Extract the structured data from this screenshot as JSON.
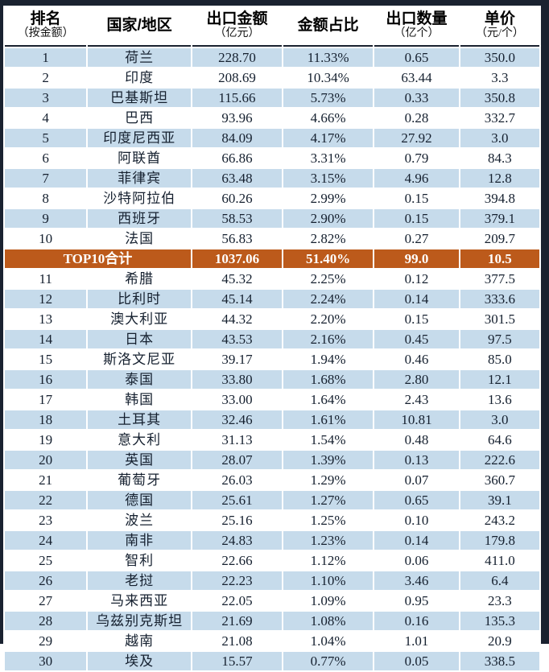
{
  "colors": {
    "row_blue": "#c6dbeb",
    "row_white": "#ffffff",
    "total_row_bg": "#bc5a1b",
    "total_row_text": "#ffffff",
    "outer_border": "#1a2230",
    "body_text": "#15202f",
    "header_text": "#000000"
  },
  "chart_data": {
    "type": "table",
    "headers": [
      {
        "main": "排名",
        "sub": "（按金额）"
      },
      {
        "main": "国家/地区",
        "sub": ""
      },
      {
        "main": "出口金额",
        "sub": "（亿元）"
      },
      {
        "main": "金额占比",
        "sub": ""
      },
      {
        "main": "出口数量",
        "sub": "（亿个）"
      },
      {
        "main": "单价",
        "sub": "（元/个）"
      }
    ],
    "rows": [
      {
        "rank": 1,
        "country": "荷兰",
        "amount": "228.70",
        "share": "11.33%",
        "quantity": "0.65",
        "price": "350.0"
      },
      {
        "rank": 2,
        "country": "印度",
        "amount": "208.69",
        "share": "10.34%",
        "quantity": "63.44",
        "price": "3.3"
      },
      {
        "rank": 3,
        "country": "巴基斯坦",
        "amount": "115.66",
        "share": "5.73%",
        "quantity": "0.33",
        "price": "350.8"
      },
      {
        "rank": 4,
        "country": "巴西",
        "amount": "93.96",
        "share": "4.66%",
        "quantity": "0.28",
        "price": "332.7"
      },
      {
        "rank": 5,
        "country": "印度尼西亚",
        "amount": "84.09",
        "share": "4.17%",
        "quantity": "27.92",
        "price": "3.0"
      },
      {
        "rank": 6,
        "country": "阿联酋",
        "amount": "66.86",
        "share": "3.31%",
        "quantity": "0.79",
        "price": "84.3"
      },
      {
        "rank": 7,
        "country": "菲律宾",
        "amount": "63.48",
        "share": "3.15%",
        "quantity": "4.96",
        "price": "12.8"
      },
      {
        "rank": 8,
        "country": "沙特阿拉伯",
        "amount": "60.26",
        "share": "2.99%",
        "quantity": "0.15",
        "price": "394.8"
      },
      {
        "rank": 9,
        "country": "西班牙",
        "amount": "58.53",
        "share": "2.90%",
        "quantity": "0.15",
        "price": "379.1"
      },
      {
        "rank": 10,
        "country": "法国",
        "amount": "56.83",
        "share": "2.82%",
        "quantity": "0.27",
        "price": "209.7"
      },
      {
        "total": true,
        "label": "TOP10合计",
        "amount": "1037.06",
        "share": "51.40%",
        "quantity": "99.0",
        "price": "10.5"
      },
      {
        "rank": 11,
        "country": "希腊",
        "amount": "45.32",
        "share": "2.25%",
        "quantity": "0.12",
        "price": "377.5"
      },
      {
        "rank": 12,
        "country": "比利时",
        "amount": "45.14",
        "share": "2.24%",
        "quantity": "0.14",
        "price": "333.6"
      },
      {
        "rank": 13,
        "country": "澳大利亚",
        "amount": "44.32",
        "share": "2.20%",
        "quantity": "0.15",
        "price": "301.5"
      },
      {
        "rank": 14,
        "country": "日本",
        "amount": "43.53",
        "share": "2.16%",
        "quantity": "0.45",
        "price": "97.5"
      },
      {
        "rank": 15,
        "country": "斯洛文尼亚",
        "amount": "39.17",
        "share": "1.94%",
        "quantity": "0.46",
        "price": "85.0"
      },
      {
        "rank": 16,
        "country": "泰国",
        "amount": "33.80",
        "share": "1.68%",
        "quantity": "2.80",
        "price": "12.1"
      },
      {
        "rank": 17,
        "country": "韩国",
        "amount": "33.00",
        "share": "1.64%",
        "quantity": "2.43",
        "price": "13.6"
      },
      {
        "rank": 18,
        "country": "土耳其",
        "amount": "32.46",
        "share": "1.61%",
        "quantity": "10.81",
        "price": "3.0"
      },
      {
        "rank": 19,
        "country": "意大利",
        "amount": "31.13",
        "share": "1.54%",
        "quantity": "0.48",
        "price": "64.6"
      },
      {
        "rank": 20,
        "country": "英国",
        "amount": "28.07",
        "share": "1.39%",
        "quantity": "0.13",
        "price": "222.6"
      },
      {
        "rank": 21,
        "country": "葡萄牙",
        "amount": "26.03",
        "share": "1.29%",
        "quantity": "0.07",
        "price": "360.7"
      },
      {
        "rank": 22,
        "country": "德国",
        "amount": "25.61",
        "share": "1.27%",
        "quantity": "0.65",
        "price": "39.1"
      },
      {
        "rank": 23,
        "country": "波兰",
        "amount": "25.16",
        "share": "1.25%",
        "quantity": "0.10",
        "price": "243.2"
      },
      {
        "rank": 24,
        "country": "南非",
        "amount": "24.83",
        "share": "1.23%",
        "quantity": "0.14",
        "price": "179.8"
      },
      {
        "rank": 25,
        "country": "智利",
        "amount": "22.66",
        "share": "1.12%",
        "quantity": "0.06",
        "price": "411.0"
      },
      {
        "rank": 26,
        "country": "老挝",
        "amount": "22.23",
        "share": "1.10%",
        "quantity": "3.46",
        "price": "6.4"
      },
      {
        "rank": 27,
        "country": "马来西亚",
        "amount": "22.05",
        "share": "1.09%",
        "quantity": "0.95",
        "price": "23.3"
      },
      {
        "rank": 28,
        "country": "乌兹别克斯坦",
        "amount": "21.69",
        "share": "1.08%",
        "quantity": "0.16",
        "price": "135.3"
      },
      {
        "rank": 29,
        "country": "越南",
        "amount": "21.08",
        "share": "1.04%",
        "quantity": "1.01",
        "price": "20.9"
      },
      {
        "rank": 30,
        "country": "埃及",
        "amount": "15.57",
        "share": "0.77%",
        "quantity": "0.05",
        "price": "338.5"
      }
    ]
  }
}
